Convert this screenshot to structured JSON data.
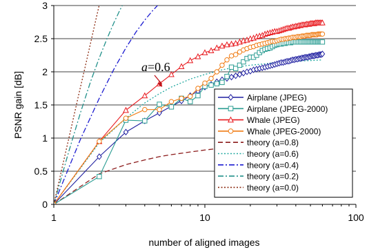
{
  "chart_data": {
    "type": "line",
    "title": "",
    "xlabel": "number of aligned images",
    "ylabel": "PSNR gain [dB]",
    "xscale": "log",
    "xlim": [
      1,
      100
    ],
    "ylim": [
      0,
      3
    ],
    "xticks": [
      1,
      10,
      100
    ],
    "xtick_labels": [
      "1",
      "10",
      "100"
    ],
    "yticks": [
      0,
      0.5,
      1,
      1.5,
      2,
      2.5,
      3
    ],
    "ytick_labels": [
      "0",
      "0.5",
      "1",
      "1.5",
      "2",
      "2.5",
      "3"
    ],
    "grid": "horizontal",
    "legend_position": "right",
    "annotation": {
      "text": "a=0.6",
      "italic_part": "a",
      "rest": "=0.6",
      "points_to": {
        "x": 5.2,
        "y": 1.77
      }
    },
    "series": [
      {
        "name": "Airplane (JPEG)",
        "color": "#1f1fa0",
        "marker": "diamond",
        "dash": "solid",
        "x": [
          1,
          2,
          3,
          4,
          5,
          6,
          7,
          8,
          9,
          10,
          11,
          12,
          13,
          14,
          15,
          16,
          17,
          18,
          19,
          20,
          21,
          22,
          23,
          24,
          25,
          26,
          27,
          28,
          29,
          30,
          31,
          32,
          33,
          34,
          35,
          36,
          37,
          38,
          39,
          40,
          41,
          42,
          43,
          44,
          45,
          46,
          47,
          48,
          49,
          50,
          51,
          52,
          53,
          54,
          55,
          56,
          57,
          58,
          59,
          60
        ],
        "y": [
          0,
          0.72,
          1.09,
          1.26,
          1.38,
          1.48,
          1.56,
          1.64,
          1.71,
          1.77,
          1.81,
          1.85,
          1.88,
          1.9,
          1.92,
          1.94,
          1.96,
          1.98,
          2,
          2.01,
          2.03,
          2.04,
          2.05,
          2.06,
          2.07,
          2.08,
          2.09,
          2.1,
          2.11,
          2.12,
          2.13,
          2.14,
          2.14,
          2.15,
          2.16,
          2.16,
          2.17,
          2.18,
          2.18,
          2.19,
          2.19,
          2.2,
          2.2,
          2.21,
          2.21,
          2.22,
          2.22,
          2.22,
          2.23,
          2.23,
          2.24,
          2.24,
          2.24,
          2.25,
          2.25,
          2.25,
          2.26,
          2.26,
          2.26,
          2.27
        ]
      },
      {
        "name": "Airplane (JPEG-2000)",
        "color": "#2a9c92",
        "marker": "square",
        "dash": "solid",
        "x": [
          1,
          2,
          3,
          4,
          5,
          6,
          7,
          8,
          9,
          10,
          11,
          12,
          13,
          14,
          15,
          16,
          17,
          18,
          19,
          20,
          21,
          22,
          23,
          24,
          25,
          26,
          27,
          28,
          29,
          30,
          31,
          32,
          33,
          34,
          35,
          36,
          37,
          38,
          39,
          40,
          41,
          42,
          43,
          44,
          45,
          46,
          47,
          48,
          49,
          50,
          51,
          52,
          53,
          54,
          55,
          56,
          57,
          58,
          59,
          60
        ],
        "y": [
          0,
          0.42,
          1.27,
          1.26,
          1.51,
          1.47,
          1.6,
          1.55,
          1.64,
          1.78,
          1.8,
          1.82,
          1.84,
          1.93,
          2.07,
          2.05,
          2.1,
          2.15,
          2.2,
          2.22,
          2.22,
          2.25,
          2.29,
          2.32,
          2.34,
          2.35,
          2.36,
          2.38,
          2.4,
          2.41,
          2.42,
          2.42,
          2.43,
          2.43,
          2.44,
          2.44,
          2.44,
          2.45,
          2.45,
          2.45,
          2.45,
          2.45,
          2.45,
          2.45,
          2.45,
          2.45,
          2.45,
          2.45,
          2.45,
          2.45,
          2.45,
          2.45,
          2.45,
          2.45,
          2.45,
          2.45,
          2.45,
          2.45,
          2.45,
          2.45
        ]
      },
      {
        "name": "Whale (JPEG)",
        "color": "#e8191e",
        "marker": "triangle",
        "dash": "solid",
        "x": [
          1,
          2,
          3,
          4,
          5,
          6,
          7,
          8,
          9,
          10,
          11,
          12,
          13,
          14,
          15,
          16,
          17,
          18,
          19,
          20,
          21,
          22,
          23,
          24,
          25,
          26,
          27,
          28,
          29,
          30,
          31,
          32,
          33,
          34,
          35,
          36,
          37,
          38,
          39,
          40,
          41,
          42,
          43,
          44,
          45,
          46,
          47,
          48,
          49,
          50,
          51,
          52,
          53,
          54,
          55,
          56,
          57,
          58,
          59,
          60
        ],
        "y": [
          0,
          0.95,
          1.42,
          1.64,
          1.82,
          1.96,
          2.08,
          2.17,
          2.23,
          2.29,
          2.32,
          2.36,
          2.39,
          2.41,
          2.42,
          2.43,
          2.45,
          2.47,
          2.48,
          2.5,
          2.51,
          2.53,
          2.54,
          2.55,
          2.57,
          2.58,
          2.59,
          2.6,
          2.61,
          2.61,
          2.62,
          2.63,
          2.64,
          2.65,
          2.66,
          2.66,
          2.67,
          2.68,
          2.68,
          2.69,
          2.69,
          2.7,
          2.7,
          2.71,
          2.71,
          2.71,
          2.72,
          2.72,
          2.72,
          2.73,
          2.73,
          2.73,
          2.73,
          2.74,
          2.74,
          2.74,
          2.74,
          2.74,
          2.74,
          2.74
        ]
      },
      {
        "name": "Whale (JPEG-2000)",
        "color": "#f07c14",
        "marker": "circle",
        "dash": "solid",
        "x": [
          1,
          2,
          3,
          4,
          5,
          6,
          7,
          8,
          9,
          10,
          11,
          12,
          13,
          14,
          15,
          16,
          17,
          18,
          19,
          20,
          21,
          22,
          23,
          24,
          25,
          26,
          27,
          28,
          29,
          30,
          31,
          32,
          33,
          34,
          35,
          36,
          37,
          38,
          39,
          40,
          41,
          42,
          43,
          44,
          45,
          46,
          47,
          48,
          49,
          50,
          51,
          52,
          53,
          54,
          55,
          56,
          57,
          58,
          59,
          60
        ],
        "y": [
          0,
          0.95,
          1.3,
          1.43,
          1.43,
          1.55,
          1.6,
          1.63,
          1.75,
          1.83,
          1.9,
          2.0,
          2.1,
          2.18,
          2.24,
          2.26,
          2.3,
          2.33,
          2.35,
          2.37,
          2.38,
          2.4,
          2.41,
          2.42,
          2.43,
          2.44,
          2.45,
          2.46,
          2.46,
          2.47,
          2.48,
          2.49,
          2.49,
          2.5,
          2.5,
          2.51,
          2.51,
          2.52,
          2.52,
          2.52,
          2.53,
          2.53,
          2.53,
          2.54,
          2.54,
          2.54,
          2.55,
          2.55,
          2.55,
          2.55,
          2.56,
          2.56,
          2.56,
          2.56,
          2.56,
          2.57,
          2.57,
          2.57,
          2.57,
          2.57
        ]
      },
      {
        "name": "theory (a=0.8)",
        "color": "#8b1a1a",
        "marker": "none",
        "dash": "long-dash",
        "x": [
          1,
          2,
          3,
          4,
          5,
          6,
          8,
          10,
          13,
          16,
          20,
          25,
          30,
          40,
          50,
          60
        ],
        "y": [
          0,
          0.46,
          0.6,
          0.67,
          0.72,
          0.75,
          0.79,
          0.82,
          0.85,
          0.87,
          0.88,
          0.89,
          0.9,
          0.91,
          0.92,
          0.92
        ]
      },
      {
        "name": "theory (a=0.6)",
        "color": "#20a8a0",
        "marker": "none",
        "dash": "dot",
        "x": [
          1,
          2,
          3,
          4,
          5,
          6,
          8,
          10,
          13,
          16,
          20,
          25,
          30,
          40,
          50,
          60
        ],
        "y": [
          0,
          0.93,
          1.3,
          1.53,
          1.67,
          1.77,
          1.89,
          1.96,
          2.03,
          2.07,
          2.1,
          2.12,
          2.14,
          2.16,
          2.17,
          2.18
        ]
      },
      {
        "name": "theory (a=0.4)",
        "color": "#1a1ad0",
        "marker": "none",
        "dash": "dash-dot",
        "x": [
          1,
          1.5,
          2,
          2.5,
          3,
          3.5,
          4,
          4.5,
          5,
          5.5,
          6,
          6.5
        ],
        "y": [
          0,
          0.98,
          1.6,
          2.04,
          2.36,
          2.6,
          2.78,
          2.92,
          3.03,
          3.12,
          3.19,
          3.25
        ]
      },
      {
        "name": "theory (a=0.2)",
        "color": "#20908a",
        "marker": "none",
        "dash": "dash-dot",
        "x": [
          1,
          1.25,
          1.5,
          1.75,
          2,
          2.25,
          2.5,
          2.75,
          3,
          3.25
        ],
        "y": [
          0,
          0.78,
          1.38,
          1.85,
          2.21,
          2.5,
          2.74,
          2.94,
          3.1,
          3.22
        ]
      },
      {
        "name": "theory (a=0.0)",
        "color": "#8b2a10",
        "marker": "none",
        "dash": "dot",
        "x": [
          1,
          1.15,
          1.3,
          1.45,
          1.6,
          1.75,
          1.9,
          2.0,
          2.1
        ],
        "y": [
          0,
          0.61,
          1.14,
          1.62,
          2.04,
          2.43,
          2.79,
          3.01,
          3.22
        ]
      }
    ]
  }
}
